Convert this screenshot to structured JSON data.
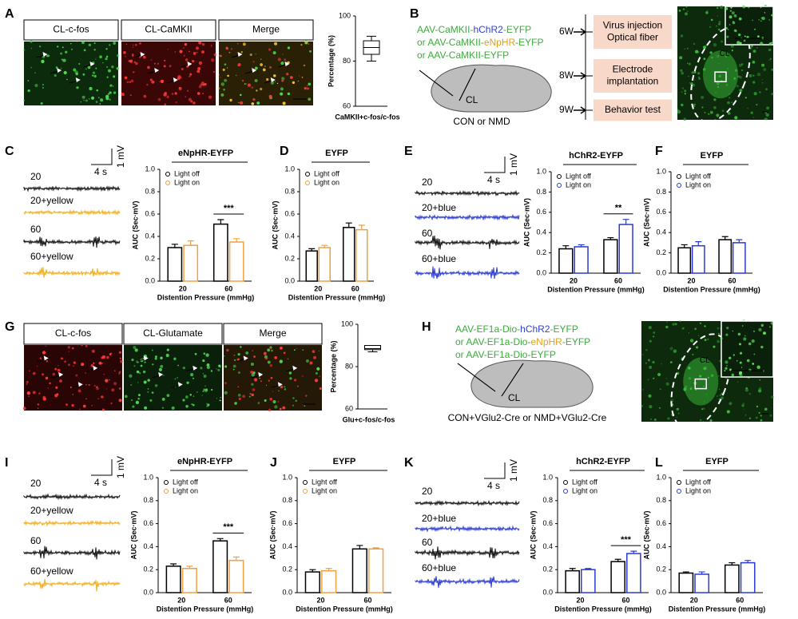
{
  "panel_labels": [
    "A",
    "B",
    "C",
    "D",
    "E",
    "F",
    "G",
    "H",
    "I",
    "J",
    "K",
    "L"
  ],
  "image_labels_A": [
    {
      "text": "CL-c-fos",
      "color": "#2aa52a"
    },
    {
      "text": "CL-CaMKII",
      "color": "#d42020"
    },
    {
      "text": "Merge",
      "color": "#d4a017"
    }
  ],
  "image_labels_G": [
    {
      "text": "CL-c-fos",
      "color": "#d42020"
    },
    {
      "text": "CL-Glutamate",
      "color": "#2aa52a"
    },
    {
      "text": "Merge",
      "color": "#d4a017"
    }
  ],
  "construct_color": "#3caa3c",
  "constructs_B": [
    [
      {
        "text": "AAV-CaMKII-"
      },
      {
        "text": "hChR2",
        "color": "#3040d0"
      },
      {
        "text": "-EYFP"
      }
    ],
    [
      {
        "text": "or AAV-CaMKII-"
      },
      {
        "text": "eNpHR",
        "color": "#e0a020"
      },
      {
        "text": "-EYFP"
      }
    ],
    [
      {
        "text": "or AAV-CaMKII-EYFP"
      }
    ]
  ],
  "constructs_H": [
    [
      {
        "text": "AAV-EF1a-Dio-"
      },
      {
        "text": "hChR2",
        "color": "#3040d0"
      },
      {
        "text": "-EYFP"
      }
    ],
    [
      {
        "text": "or AAV-EF1a-Dio-"
      },
      {
        "text": "eNpHR",
        "color": "#e0a020"
      },
      {
        "text": "-EYFP"
      }
    ],
    [
      {
        "text": "or AAV-EF1a-Dio-EYFP"
      }
    ]
  ],
  "brain_B": {
    "region": "CL",
    "group": "CON or NMD"
  },
  "brain_H": {
    "region": "CL",
    "group": "CON+VGlu2-Cre or NMD+VGlu2-Cre"
  },
  "timeline": [
    {
      "week": "6W",
      "event": [
        "Virus injection",
        "Optical fiber"
      ]
    },
    {
      "week": "8W",
      "event": [
        "Electrode",
        "implantation"
      ]
    },
    {
      "week": "9W",
      "event": [
        "Behavior test"
      ]
    }
  ],
  "image_region_B": "CL",
  "image_region_H": "CL",
  "traces": [
    {
      "labels": [
        "20",
        "20+yellow",
        "60",
        "60+yellow"
      ],
      "colors": [
        "#111111",
        "#f0b020",
        "#111111",
        "#f0b020"
      ],
      "voltage": "1 mV",
      "time": "4 s"
    },
    {
      "labels": [
        "20",
        "20+blue",
        "60",
        "60+blue"
      ],
      "colors": [
        "#111111",
        "#2a3ad0",
        "#111111",
        "#2a3ad0"
      ],
      "voltage": "1 mV",
      "time": "4 s"
    },
    {
      "labels": [
        "20",
        "20+yellow",
        "60",
        "60+yellow"
      ],
      "colors": [
        "#111111",
        "#f0b020",
        "#111111",
        "#f0b020"
      ],
      "voltage": "1 mV",
      "time": "4 s"
    },
    {
      "labels": [
        "20",
        "20+blue",
        "60",
        "60+blue"
      ],
      "colors": [
        "#111111",
        "#2a3ad0",
        "#111111",
        "#2a3ad0"
      ],
      "voltage": "1 mV",
      "time": "4 s"
    }
  ],
  "chart_data": [
    {
      "type": "box",
      "ylabel": "Percentage (%)",
      "xlabel": "CaMKII+c-fos/c-fos",
      "ylim": [
        60,
        100
      ],
      "yticks": [
        60,
        80,
        100
      ],
      "min": 80,
      "q1": 83,
      "median": 86,
      "q3": 89,
      "max": 91
    },
    {
      "type": "bar",
      "title": "eNpHR-EYFP",
      "ylabel": "AUC (Sec·mV)",
      "xlabel": "Distention Pressure (mmHg)",
      "categories": [
        "20",
        "60"
      ],
      "series": [
        {
          "name": "Light off",
          "color": "#000000",
          "values": [
            0.3,
            0.51
          ],
          "errors": [
            0.03,
            0.04
          ]
        },
        {
          "name": "Light on",
          "color": "#f0a040",
          "values": [
            0.32,
            0.35
          ],
          "errors": [
            0.04,
            0.03
          ]
        }
      ],
      "ylim": [
        0,
        1
      ],
      "yticks": [
        {
          "value": 0,
          "label": "0.0"
        },
        0.2,
        0.4,
        0.6,
        0.8,
        {
          "value": 1,
          "label": "1.0"
        }
      ],
      "annotation": "***"
    },
    {
      "type": "bar",
      "title": "EYFP",
      "ylabel": "AUC (Sec·mV)",
      "xlabel": "Distention Pressure (mmHg)",
      "categories": [
        "20",
        "60"
      ],
      "series": [
        {
          "name": "Light off",
          "color": "#000000",
          "values": [
            0.27,
            0.48
          ],
          "errors": [
            0.02,
            0.04
          ]
        },
        {
          "name": "Light on",
          "color": "#f0a040",
          "values": [
            0.3,
            0.46
          ],
          "errors": [
            0.02,
            0.04
          ]
        }
      ],
      "ylim": [
        0,
        1
      ],
      "yticks": [
        {
          "value": 0,
          "label": "0.0"
        },
        0.2,
        0.4,
        0.6,
        0.8,
        {
          "value": 1,
          "label": "1.0"
        }
      ]
    },
    {
      "type": "bar",
      "title": "hChR2-EYFP",
      "ylabel": "AUC (Sec·mV)",
      "xlabel": "Distention Pressure (mmHg)",
      "categories": [
        "20",
        "60"
      ],
      "series": [
        {
          "name": "Light off",
          "color": "#000000",
          "values": [
            0.24,
            0.33
          ],
          "errors": [
            0.03,
            0.02
          ]
        },
        {
          "name": "Light on",
          "color": "#2a3ad0",
          "values": [
            0.26,
            0.48
          ],
          "errors": [
            0.02,
            0.05
          ]
        }
      ],
      "ylim": [
        0,
        1
      ],
      "yticks": [
        {
          "value": 0,
          "label": "0.0"
        },
        0.2,
        0.4,
        0.6,
        0.8,
        {
          "value": 1,
          "label": "1.0"
        }
      ],
      "annotation": "**"
    },
    {
      "type": "bar",
      "title": "EYFP",
      "ylabel": "AUC (Sec·mV)",
      "xlabel": "Distention Pressure (mmHg)",
      "categories": [
        "20",
        "60"
      ],
      "series": [
        {
          "name": "Light off",
          "color": "#000000",
          "values": [
            0.25,
            0.33
          ],
          "errors": [
            0.03,
            0.03
          ]
        },
        {
          "name": "Light on",
          "color": "#2a3ad0",
          "values": [
            0.27,
            0.3
          ],
          "errors": [
            0.04,
            0.03
          ]
        }
      ],
      "ylim": [
        0,
        1
      ],
      "yticks": [
        {
          "value": 0,
          "label": "0.0"
        },
        0.2,
        0.4,
        0.6,
        0.8,
        {
          "value": 1,
          "label": "1.0"
        }
      ]
    },
    {
      "type": "box",
      "ylabel": "Percentage (%)",
      "xlabel": "Glu+c-fos/c-fos",
      "ylim": [
        60,
        100
      ],
      "yticks": [
        60,
        80,
        100
      ],
      "min": 87,
      "q1": 88,
      "median": 88.5,
      "q3": 90,
      "max": 90
    },
    {
      "type": "bar",
      "title": "eNpHR-EYFP",
      "ylabel": "AUC (Sec·mV)",
      "xlabel": "Distention Pressure (mmHg)",
      "categories": [
        "20",
        "60"
      ],
      "series": [
        {
          "name": "Light off",
          "color": "#000000",
          "values": [
            0.23,
            0.45
          ],
          "errors": [
            0.02,
            0.02
          ]
        },
        {
          "name": "Light on",
          "color": "#f0a040",
          "values": [
            0.21,
            0.28
          ],
          "errors": [
            0.02,
            0.03
          ]
        }
      ],
      "ylim": [
        0,
        1
      ],
      "yticks": [
        {
          "value": 0,
          "label": "0.0"
        },
        0.2,
        0.4,
        0.6,
        0.8,
        {
          "value": 1,
          "label": "1.0"
        }
      ],
      "annotation": "***"
    },
    {
      "type": "bar",
      "title": "EYFP",
      "ylabel": "AUC (Sec·mV)",
      "xlabel": "Distention Pressure (mmHg)",
      "categories": [
        "20",
        "60"
      ],
      "series": [
        {
          "name": "Light off",
          "color": "#000000",
          "values": [
            0.18,
            0.38
          ],
          "errors": [
            0.02,
            0.03
          ]
        },
        {
          "name": "Light on",
          "color": "#f0a040",
          "values": [
            0.19,
            0.38
          ],
          "errors": [
            0.02,
            0.01
          ]
        }
      ],
      "ylim": [
        0,
        1
      ],
      "yticks": [
        {
          "value": 0,
          "label": "0.0"
        },
        0.2,
        0.4,
        0.6,
        0.8,
        {
          "value": 1,
          "label": "1.0"
        }
      ]
    },
    {
      "type": "bar",
      "title": "hChR2-EYFP",
      "ylabel": "AUC (Sec·mV)",
      "xlabel": "Distention Pressure (mmHg)",
      "categories": [
        "20",
        "60"
      ],
      "series": [
        {
          "name": "Light off",
          "color": "#000000",
          "values": [
            0.19,
            0.27
          ],
          "errors": [
            0.02,
            0.02
          ]
        },
        {
          "name": "Light on",
          "color": "#2a3ad0",
          "values": [
            0.2,
            0.34
          ],
          "errors": [
            0.01,
            0.02
          ]
        }
      ],
      "ylim": [
        0,
        1
      ],
      "yticks": [
        {
          "value": 0,
          "label": "0.0"
        },
        0.2,
        0.4,
        0.6,
        0.8,
        {
          "value": 1,
          "label": "1.0"
        }
      ],
      "annotation": "***"
    },
    {
      "type": "bar",
      "title": "EYFP",
      "ylabel": "AUC (Sec·mV)",
      "xlabel": "Distention Pressure (mmHg)",
      "categories": [
        "20",
        "60"
      ],
      "series": [
        {
          "name": "Light off",
          "color": "#000000",
          "values": [
            0.17,
            0.24
          ],
          "errors": [
            0.01,
            0.02
          ]
        },
        {
          "name": "Light on",
          "color": "#2a3ad0",
          "values": [
            0.16,
            0.26
          ],
          "errors": [
            0.02,
            0.02
          ]
        }
      ],
      "ylim": [
        0,
        1
      ],
      "yticks": [
        {
          "value": 0,
          "label": "0.0"
        },
        0.2,
        0.4,
        0.6,
        0.8,
        {
          "value": 1,
          "label": "1.0"
        }
      ]
    }
  ]
}
